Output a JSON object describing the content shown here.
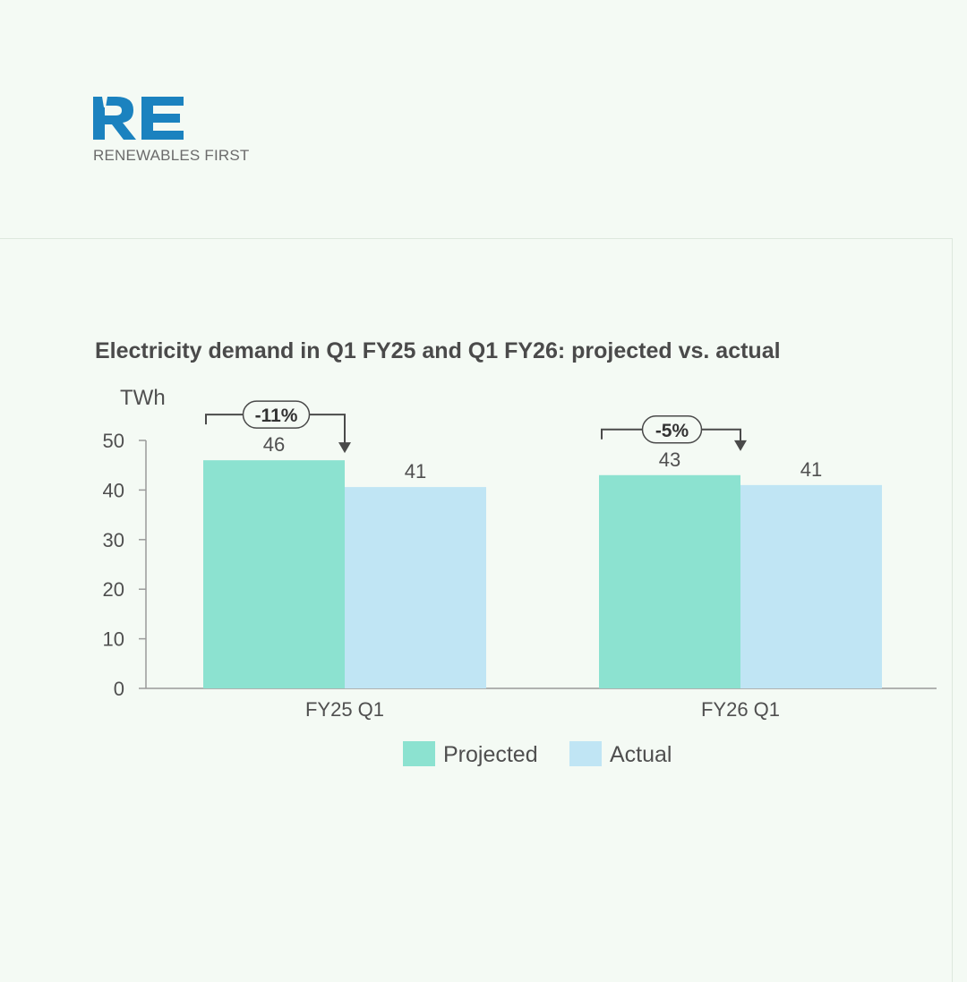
{
  "brand": {
    "mark": "RE",
    "name": "RENEWABLES FIRST",
    "color": "#1b82bf"
  },
  "chart_data": {
    "type": "bar",
    "title": "Electricity demand in Q1 FY25 and Q1 FY26: projected vs. actual",
    "ylabel": "TWh",
    "xlabel": "",
    "ylim": [
      0,
      50
    ],
    "yticks": [
      0,
      10,
      20,
      30,
      40,
      50
    ],
    "categories": [
      "FY25 Q1",
      "FY26 Q1"
    ],
    "series": [
      {
        "name": "Projected",
        "values": [
          46,
          43
        ],
        "labels": [
          "46",
          "43"
        ],
        "color": "#8ce2d0"
      },
      {
        "name": "Actual",
        "values": [
          40.6,
          41
        ],
        "labels": [
          "41",
          "41"
        ],
        "color": "#c0e5f4"
      }
    ],
    "annotations": [
      {
        "category": "FY25 Q1",
        "text": "-11%"
      },
      {
        "category": "FY26 Q1",
        "text": "-5%"
      }
    ],
    "legend": "bottom-center",
    "grid": false
  }
}
